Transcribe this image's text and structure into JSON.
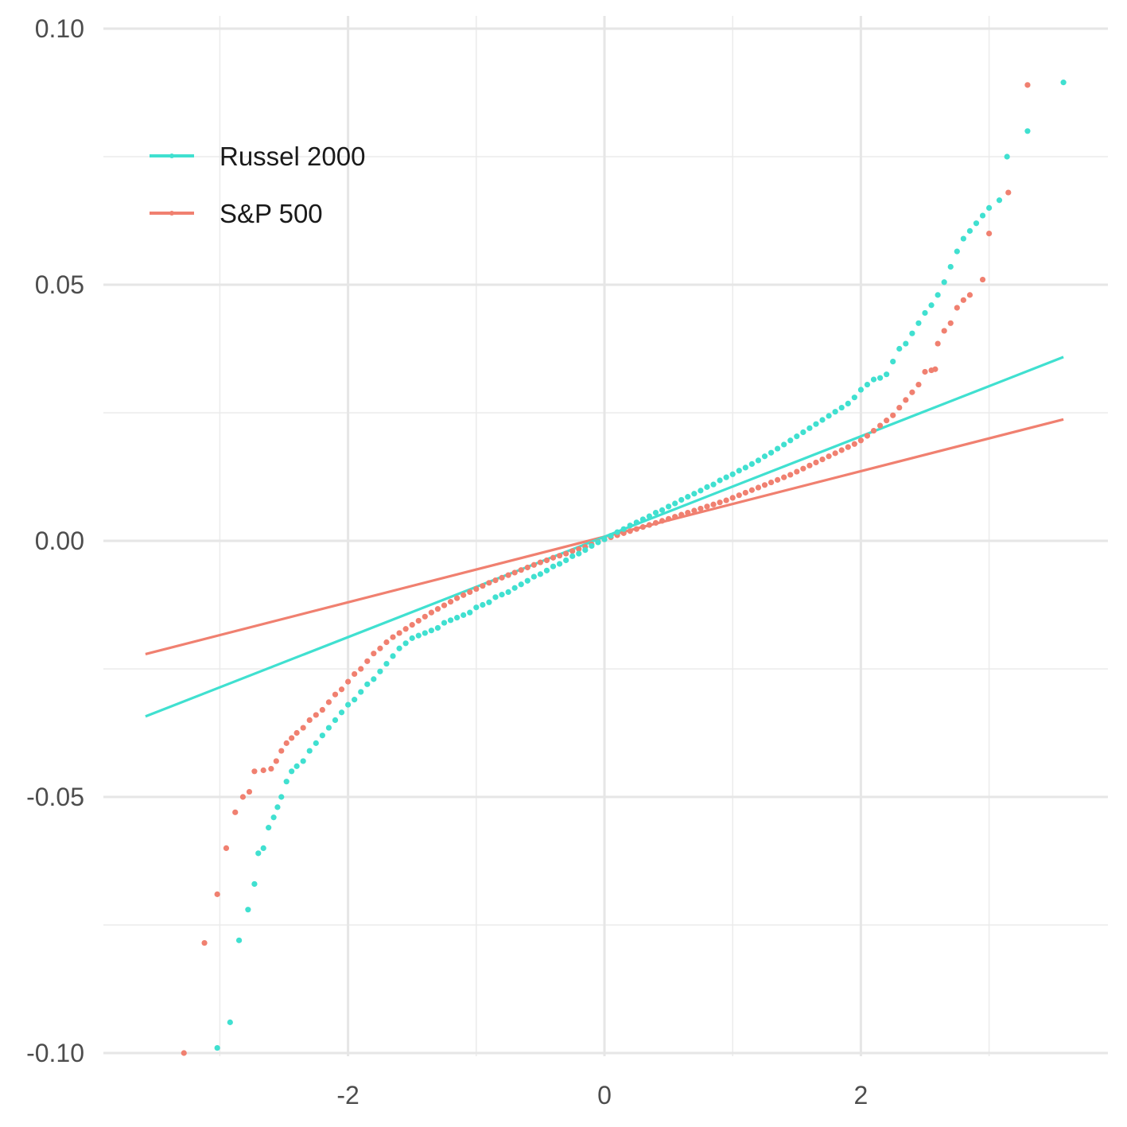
{
  "chart_data": {
    "type": "scatter",
    "subtype": "normal-qq-plot",
    "title": "",
    "xlabel": "",
    "ylabel": "",
    "xlim": [
      -3.6,
      3.9
    ],
    "ylim": [
      -0.1015,
      0.1
    ],
    "x_ticks": [
      -2,
      0,
      2
    ],
    "x_tick_labels": [
      "-2",
      "0",
      "2"
    ],
    "y_ticks": [
      -0.1,
      -0.05,
      0.0,
      0.05,
      0.1
    ],
    "y_tick_labels": [
      "-0.10",
      "-0.05",
      "0.00",
      "0.05",
      "0.10"
    ],
    "grid": true,
    "legend": {
      "position": "top-left",
      "entries": [
        "Russel 2000",
        "S&P 500"
      ]
    },
    "series": [
      {
        "name": "Russel 2000",
        "color": "#40E0D0",
        "reference_line": {
          "x_range": [
            -3.58,
            3.58
          ],
          "intercept": 0.0008,
          "slope": 0.0098
        },
        "points": [
          [
            -3.02,
            -0.099
          ],
          [
            -2.92,
            -0.094
          ],
          [
            -2.85,
            -0.078
          ],
          [
            -2.78,
            -0.072
          ],
          [
            -2.73,
            -0.067
          ],
          [
            -2.7,
            -0.061
          ],
          [
            -2.66,
            -0.06
          ],
          [
            -2.62,
            -0.056
          ],
          [
            -2.58,
            -0.054
          ],
          [
            -2.55,
            -0.052
          ],
          [
            -2.52,
            -0.05
          ],
          [
            -2.48,
            -0.047
          ],
          [
            -2.44,
            -0.045
          ],
          [
            -2.4,
            -0.044
          ],
          [
            -2.35,
            -0.043
          ],
          [
            -2.3,
            -0.041
          ],
          [
            -2.25,
            -0.0395
          ],
          [
            -2.2,
            -0.038
          ],
          [
            -2.15,
            -0.0365
          ],
          [
            -2.1,
            -0.035
          ],
          [
            -2.05,
            -0.0335
          ],
          [
            -2.0,
            -0.032
          ],
          [
            -1.95,
            -0.031
          ],
          [
            -1.9,
            -0.0295
          ],
          [
            -1.85,
            -0.028
          ],
          [
            -1.8,
            -0.027
          ],
          [
            -1.75,
            -0.0255
          ],
          [
            -1.7,
            -0.024
          ],
          [
            -1.65,
            -0.0225
          ],
          [
            -1.6,
            -0.021
          ],
          [
            -1.55,
            -0.02
          ],
          [
            -1.5,
            -0.019
          ],
          [
            -1.45,
            -0.0185
          ],
          [
            -1.4,
            -0.018
          ],
          [
            -1.35,
            -0.0175
          ],
          [
            -1.3,
            -0.017
          ],
          [
            -1.25,
            -0.016
          ],
          [
            -1.2,
            -0.0155
          ],
          [
            -1.15,
            -0.015
          ],
          [
            -1.1,
            -0.0145
          ],
          [
            -1.05,
            -0.014
          ],
          [
            -1.0,
            -0.013
          ],
          [
            -0.95,
            -0.0125
          ],
          [
            -0.9,
            -0.012
          ],
          [
            -0.85,
            -0.011
          ],
          [
            -0.8,
            -0.0105
          ],
          [
            -0.75,
            -0.01
          ],
          [
            -0.7,
            -0.0092
          ],
          [
            -0.65,
            -0.0085
          ],
          [
            -0.6,
            -0.0078
          ],
          [
            -0.55,
            -0.007
          ],
          [
            -0.5,
            -0.0065
          ],
          [
            -0.45,
            -0.0058
          ],
          [
            -0.4,
            -0.005
          ],
          [
            -0.35,
            -0.0045
          ],
          [
            -0.3,
            -0.0038
          ],
          [
            -0.25,
            -0.003
          ],
          [
            -0.2,
            -0.0025
          ],
          [
            -0.15,
            -0.0018
          ],
          [
            -0.1,
            -0.001
          ],
          [
            -0.05,
            -0.0003
          ],
          [
            0.0,
            0.0003
          ],
          [
            0.05,
            0.001
          ],
          [
            0.1,
            0.0017
          ],
          [
            0.15,
            0.0023
          ],
          [
            0.2,
            0.003
          ],
          [
            0.25,
            0.0036
          ],
          [
            0.3,
            0.0042
          ],
          [
            0.35,
            0.0048
          ],
          [
            0.4,
            0.0055
          ],
          [
            0.45,
            0.006
          ],
          [
            0.5,
            0.0067
          ],
          [
            0.55,
            0.0073
          ],
          [
            0.6,
            0.008
          ],
          [
            0.65,
            0.0086
          ],
          [
            0.7,
            0.0092
          ],
          [
            0.75,
            0.0098
          ],
          [
            0.8,
            0.0105
          ],
          [
            0.85,
            0.011
          ],
          [
            0.9,
            0.0118
          ],
          [
            0.95,
            0.0124
          ],
          [
            1.0,
            0.013
          ],
          [
            1.05,
            0.0137
          ],
          [
            1.1,
            0.0143
          ],
          [
            1.15,
            0.015
          ],
          [
            1.2,
            0.0157
          ],
          [
            1.25,
            0.0165
          ],
          [
            1.3,
            0.0172
          ],
          [
            1.35,
            0.018
          ],
          [
            1.4,
            0.0188
          ],
          [
            1.45,
            0.0196
          ],
          [
            1.5,
            0.0204
          ],
          [
            1.55,
            0.0212
          ],
          [
            1.6,
            0.022
          ],
          [
            1.65,
            0.0228
          ],
          [
            1.7,
            0.0236
          ],
          [
            1.75,
            0.0244
          ],
          [
            1.8,
            0.0252
          ],
          [
            1.85,
            0.026
          ],
          [
            1.9,
            0.0268
          ],
          [
            1.95,
            0.028
          ],
          [
            2.0,
            0.0295
          ],
          [
            2.05,
            0.0305
          ],
          [
            2.1,
            0.0315
          ],
          [
            2.15,
            0.0318
          ],
          [
            2.2,
            0.0325
          ],
          [
            2.25,
            0.035
          ],
          [
            2.3,
            0.0375
          ],
          [
            2.35,
            0.0385
          ],
          [
            2.4,
            0.0405
          ],
          [
            2.45,
            0.0425
          ],
          [
            2.5,
            0.0445
          ],
          [
            2.55,
            0.046
          ],
          [
            2.6,
            0.048
          ],
          [
            2.65,
            0.0505
          ],
          [
            2.7,
            0.0535
          ],
          [
            2.75,
            0.0565
          ],
          [
            2.8,
            0.059
          ],
          [
            2.85,
            0.0605
          ],
          [
            2.9,
            0.062
          ],
          [
            2.95,
            0.0635
          ],
          [
            3.0,
            0.065
          ],
          [
            3.08,
            0.0665
          ],
          [
            3.14,
            0.075
          ],
          [
            3.3,
            0.08
          ],
          [
            3.58,
            0.0895
          ]
        ]
      },
      {
        "name": "S&P 500",
        "color": "#F08070",
        "reference_line": {
          "x_range": [
            -3.58,
            3.58
          ],
          "intercept": 0.0008,
          "slope": 0.0064
        },
        "points": [
          [
            -3.28,
            -0.1
          ],
          [
            -3.12,
            -0.0785
          ],
          [
            -3.02,
            -0.069
          ],
          [
            -2.95,
            -0.06
          ],
          [
            -2.88,
            -0.053
          ],
          [
            -2.82,
            -0.05
          ],
          [
            -2.77,
            -0.049
          ],
          [
            -2.73,
            -0.045
          ],
          [
            -2.66,
            -0.0448
          ],
          [
            -2.6,
            -0.0445
          ],
          [
            -2.56,
            -0.043
          ],
          [
            -2.52,
            -0.041
          ],
          [
            -2.48,
            -0.0395
          ],
          [
            -2.44,
            -0.0385
          ],
          [
            -2.4,
            -0.0375
          ],
          [
            -2.35,
            -0.0365
          ],
          [
            -2.3,
            -0.035
          ],
          [
            -2.25,
            -0.034
          ],
          [
            -2.2,
            -0.033
          ],
          [
            -2.15,
            -0.0315
          ],
          [
            -2.1,
            -0.03
          ],
          [
            -2.05,
            -0.029
          ],
          [
            -2.0,
            -0.0275
          ],
          [
            -1.95,
            -0.026
          ],
          [
            -1.9,
            -0.025
          ],
          [
            -1.85,
            -0.0235
          ],
          [
            -1.8,
            -0.022
          ],
          [
            -1.75,
            -0.021
          ],
          [
            -1.7,
            -0.0198
          ],
          [
            -1.65,
            -0.0188
          ],
          [
            -1.6,
            -0.018
          ],
          [
            -1.55,
            -0.0172
          ],
          [
            -1.5,
            -0.0164
          ],
          [
            -1.45,
            -0.0156
          ],
          [
            -1.4,
            -0.0148
          ],
          [
            -1.35,
            -0.014
          ],
          [
            -1.3,
            -0.0133
          ],
          [
            -1.25,
            -0.0126
          ],
          [
            -1.2,
            -0.0119
          ],
          [
            -1.15,
            -0.0112
          ],
          [
            -1.1,
            -0.0106
          ],
          [
            -1.05,
            -0.01
          ],
          [
            -1.0,
            -0.0094
          ],
          [
            -0.95,
            -0.0088
          ],
          [
            -0.9,
            -0.0082
          ],
          [
            -0.85,
            -0.0077
          ],
          [
            -0.8,
            -0.0072
          ],
          [
            -0.75,
            -0.0067
          ],
          [
            -0.7,
            -0.0062
          ],
          [
            -0.65,
            -0.0057
          ],
          [
            -0.6,
            -0.0052
          ],
          [
            -0.55,
            -0.0047
          ],
          [
            -0.5,
            -0.0042
          ],
          [
            -0.45,
            -0.0038
          ],
          [
            -0.4,
            -0.0033
          ],
          [
            -0.35,
            -0.0029
          ],
          [
            -0.3,
            -0.0025
          ],
          [
            -0.25,
            -0.002
          ],
          [
            -0.2,
            -0.0016
          ],
          [
            -0.15,
            -0.0012
          ],
          [
            -0.1,
            -0.0007
          ],
          [
            -0.05,
            -0.0002
          ],
          [
            0.0,
            0.0003
          ],
          [
            0.05,
            0.0007
          ],
          [
            0.1,
            0.0011
          ],
          [
            0.15,
            0.0015
          ],
          [
            0.2,
            0.0019
          ],
          [
            0.25,
            0.0023
          ],
          [
            0.3,
            0.0027
          ],
          [
            0.35,
            0.0031
          ],
          [
            0.4,
            0.0035
          ],
          [
            0.45,
            0.0039
          ],
          [
            0.5,
            0.0043
          ],
          [
            0.55,
            0.0047
          ],
          [
            0.6,
            0.0051
          ],
          [
            0.65,
            0.0055
          ],
          [
            0.7,
            0.0059
          ],
          [
            0.75,
            0.0063
          ],
          [
            0.8,
            0.0067
          ],
          [
            0.85,
            0.0071
          ],
          [
            0.9,
            0.0075
          ],
          [
            0.95,
            0.0079
          ],
          [
            1.0,
            0.0084
          ],
          [
            1.05,
            0.0089
          ],
          [
            1.1,
            0.0094
          ],
          [
            1.15,
            0.0099
          ],
          [
            1.2,
            0.0104
          ],
          [
            1.25,
            0.0109
          ],
          [
            1.3,
            0.0114
          ],
          [
            1.35,
            0.0119
          ],
          [
            1.4,
            0.0124
          ],
          [
            1.45,
            0.0129
          ],
          [
            1.5,
            0.0135
          ],
          [
            1.55,
            0.0141
          ],
          [
            1.6,
            0.0147
          ],
          [
            1.65,
            0.0153
          ],
          [
            1.7,
            0.0159
          ],
          [
            1.75,
            0.0165
          ],
          [
            1.8,
            0.0171
          ],
          [
            1.85,
            0.0177
          ],
          [
            1.9,
            0.0183
          ],
          [
            1.95,
            0.0189
          ],
          [
            2.0,
            0.0196
          ],
          [
            2.05,
            0.0205
          ],
          [
            2.1,
            0.0215
          ],
          [
            2.15,
            0.0225
          ],
          [
            2.2,
            0.0235
          ],
          [
            2.25,
            0.0245
          ],
          [
            2.3,
            0.026
          ],
          [
            2.35,
            0.0275
          ],
          [
            2.4,
            0.029
          ],
          [
            2.45,
            0.0305
          ],
          [
            2.5,
            0.033
          ],
          [
            2.55,
            0.0333
          ],
          [
            2.58,
            0.0335
          ],
          [
            2.6,
            0.0385
          ],
          [
            2.65,
            0.041
          ],
          [
            2.7,
            0.0425
          ],
          [
            2.75,
            0.0455
          ],
          [
            2.8,
            0.047
          ],
          [
            2.85,
            0.048
          ],
          [
            2.95,
            0.051
          ],
          [
            3.0,
            0.06
          ],
          [
            3.15,
            0.068
          ],
          [
            3.3,
            0.089
          ]
        ]
      }
    ]
  }
}
